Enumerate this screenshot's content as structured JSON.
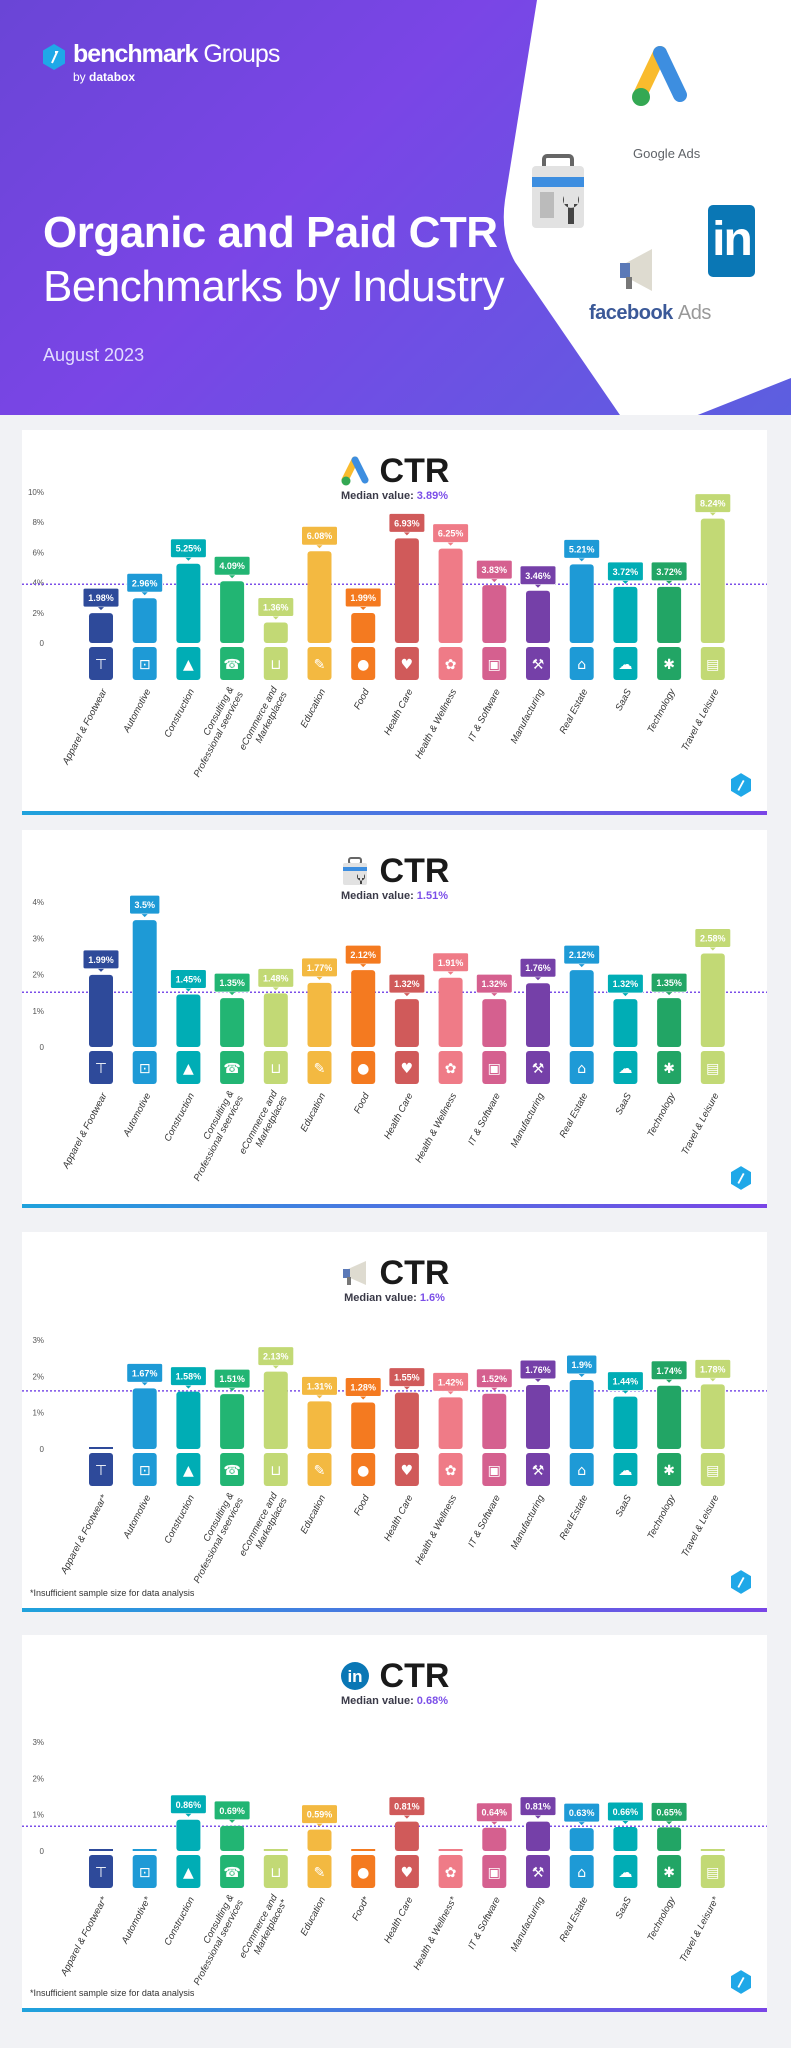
{
  "header": {
    "brand": "benchmark",
    "brand_suffix": "Groups",
    "by": "by",
    "by_name": "databox",
    "title_line1": "Organic and Paid CTR",
    "title_line2": "Benchmarks by Industry",
    "date": "August 2023",
    "logos": {
      "google_ads": "Google Ads",
      "facebook": "facebook",
      "facebook_ads": "Ads",
      "linkedin": "in"
    }
  },
  "colors": {
    "median_line": "#7b4fe8",
    "industries": [
      "#2e4a9a",
      "#1e9ad6",
      "#00adb5",
      "#22b573",
      "#c2d975",
      "#f3b941",
      "#f47a20",
      "#d05a5a",
      "#ef7b87",
      "#d5608f",
      "#7540a8",
      "#1e9ad6",
      "#00adb5",
      "#22a565",
      "#c2d975"
    ],
    "icons": [
      "shirt-icon",
      "car-icon",
      "hard-hat-icon",
      "phone-icon",
      "cart-icon",
      "graduation-cap-icon",
      "apple-icon",
      "heartbeat-icon",
      "lotus-icon",
      "monitor-icon",
      "factory-icon",
      "key-icon",
      "cloud-tree-icon",
      "hand-network-icon",
      "suitcase-icon"
    ]
  },
  "chart_data": [
    {
      "type": "bar",
      "platform_icon": "google-ads-icon",
      "title": "CTR",
      "median_label": "Median value:",
      "median_text": "3.89%",
      "median": 3.89,
      "ylim": [
        0,
        10
      ],
      "yticks": [
        0,
        2,
        4,
        6,
        8,
        10
      ],
      "ytick_labels": [
        "0",
        "2%",
        "4%",
        "6%",
        "8%",
        "10%"
      ],
      "categories": [
        "Apparel & Footwear",
        "Automotive",
        "Construction",
        "Consulting &\nProfessional seervices",
        "eCommerce and\nMarketplaces",
        "Education",
        "Food",
        "Health Care",
        "Health & Wellness",
        "IT & Software",
        "Manufacturing",
        "Real Estate",
        "SaaS",
        "Technology",
        "Travel & Leisure"
      ],
      "values": [
        1.98,
        2.96,
        5.25,
        4.09,
        1.36,
        6.08,
        1.99,
        6.93,
        6.25,
        3.83,
        3.46,
        5.21,
        3.72,
        3.72,
        8.24
      ],
      "value_labels": [
        "1.98%",
        "2.96%",
        "5.25%",
        "4.09%",
        "1.36%",
        "6.08%",
        "1.99%",
        "6.93%",
        "6.25%",
        "3.83%",
        "3.46%",
        "5.21%",
        "3.72%",
        "3.72%",
        "8.24%"
      ],
      "footnote": ""
    },
    {
      "type": "bar",
      "platform_icon": "google-search-console-icon",
      "title": "CTR",
      "median_label": "Median value:",
      "median_text": "1.51%",
      "median": 1.51,
      "ylim": [
        0,
        4
      ],
      "yticks": [
        0,
        1,
        2,
        3,
        4
      ],
      "ytick_labels": [
        "0",
        "1%",
        "2%",
        "3%",
        "4%"
      ],
      "categories": [
        "Apparel & Footwear",
        "Automotive",
        "Construction",
        "Consulting &\nProfessional seervices",
        "eCommerce and\nMarketplaces",
        "Education",
        "Food",
        "Health Care",
        "Health & Wellness",
        "IT & Software",
        "Manufacturing",
        "Real Estate",
        "SaaS",
        "Technology",
        "Travel & Leisure"
      ],
      "values": [
        1.99,
        3.5,
        1.45,
        1.35,
        1.48,
        1.77,
        2.12,
        1.32,
        1.91,
        1.32,
        1.76,
        2.12,
        1.32,
        1.35,
        2.58
      ],
      "value_labels": [
        "1.99%",
        "3.5%",
        "1.45%",
        "1.35%",
        "1.48%",
        "1.77%",
        "2.12%",
        "1.32%",
        "1.91%",
        "1.32%",
        "1.76%",
        "2.12%",
        "1.32%",
        "1.35%",
        "2.58%"
      ],
      "footnote": ""
    },
    {
      "type": "bar",
      "platform_icon": "facebook-ads-icon",
      "title": "CTR",
      "median_label": "Median value:",
      "median_text": "1.6%",
      "median": 1.6,
      "ylim": [
        0,
        3
      ],
      "yticks": [
        0,
        1,
        2,
        3
      ],
      "ytick_labels": [
        "0",
        "1%",
        "2%",
        "3%"
      ],
      "categories": [
        "Apparel & Footwear*",
        "Automotive",
        "Construction",
        "Consulting &\nProfessional seervices",
        "eCommerce and\nMarketplaces",
        "Education",
        "Food",
        "Health Care",
        "Health & Wellness",
        "IT & Software",
        "Manufacturing",
        "Real Estate",
        "SaaS",
        "Technology",
        "Travel & Leisure"
      ],
      "values": [
        null,
        1.67,
        1.58,
        1.51,
        2.13,
        1.31,
        1.28,
        1.55,
        1.42,
        1.52,
        1.76,
        1.9,
        1.44,
        1.74,
        1.78
      ],
      "value_labels": [
        "",
        "1.67%",
        "1.58%",
        "1.51%",
        "2.13%",
        "1.31%",
        "1.28%",
        "1.55%",
        "1.42%",
        "1.52%",
        "1.76%",
        "1.9%",
        "1.44%",
        "1.74%",
        "1.78%"
      ],
      "footnote": "*Insufficient sample size for data analysis"
    },
    {
      "type": "bar",
      "platform_icon": "linkedin-icon",
      "title": "CTR",
      "median_label": "Median value:",
      "median_text": "0.68%",
      "median": 0.68,
      "ylim": [
        0,
        3
      ],
      "yticks": [
        0,
        1,
        2,
        3
      ],
      "ytick_labels": [
        "0",
        "1%",
        "2%",
        "3%"
      ],
      "categories": [
        "Apparel & Footwear*",
        "Automotive*",
        "Construction",
        "Consulting &\nProfessional seervices",
        "eCommerce and\nMarketplaces*",
        "Education",
        "Food*",
        "Health Care",
        "Health & Wellness*",
        "IT & Software",
        "Manufacturing",
        "Real Estate",
        "SaaS",
        "Technology",
        "Travel & Leisure*"
      ],
      "values": [
        null,
        null,
        0.86,
        0.69,
        null,
        0.59,
        null,
        0.81,
        null,
        0.64,
        0.81,
        0.63,
        0.66,
        0.65,
        null
      ],
      "value_labels": [
        "",
        "",
        "0.86%",
        "0.69%",
        "",
        "0.59%",
        "",
        "0.81%",
        "",
        "0.64%",
        "0.81%",
        "0.63%",
        "0.66%",
        "0.65%",
        ""
      ],
      "footnote": "*Insufficient sample size for data analysis"
    }
  ]
}
